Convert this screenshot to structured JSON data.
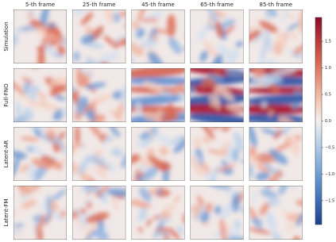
{
  "columns": [
    "5-th frame",
    "25-th frame",
    "45-th frame",
    "65-th frame",
    "85-th frame"
  ],
  "rows": [
    "Simulation",
    "Full-FNO",
    "Latent-AR",
    "Latent-FM"
  ],
  "colorbar": {
    "lim": [
      -1.95,
      1.95
    ],
    "ticks": [
      {
        "value": 1.5,
        "label": "1.5"
      },
      {
        "value": 1,
        "label": "1.0"
      },
      {
        "value": 0.5,
        "label": "0.5"
      },
      {
        "value": 0,
        "label": "0.0"
      },
      {
        "value": -0.5,
        "label": "−0.5"
      },
      {
        "value": -1,
        "label": "−1.0"
      },
      {
        "value": -1.5,
        "label": "−1.5"
      }
    ]
  }
}
